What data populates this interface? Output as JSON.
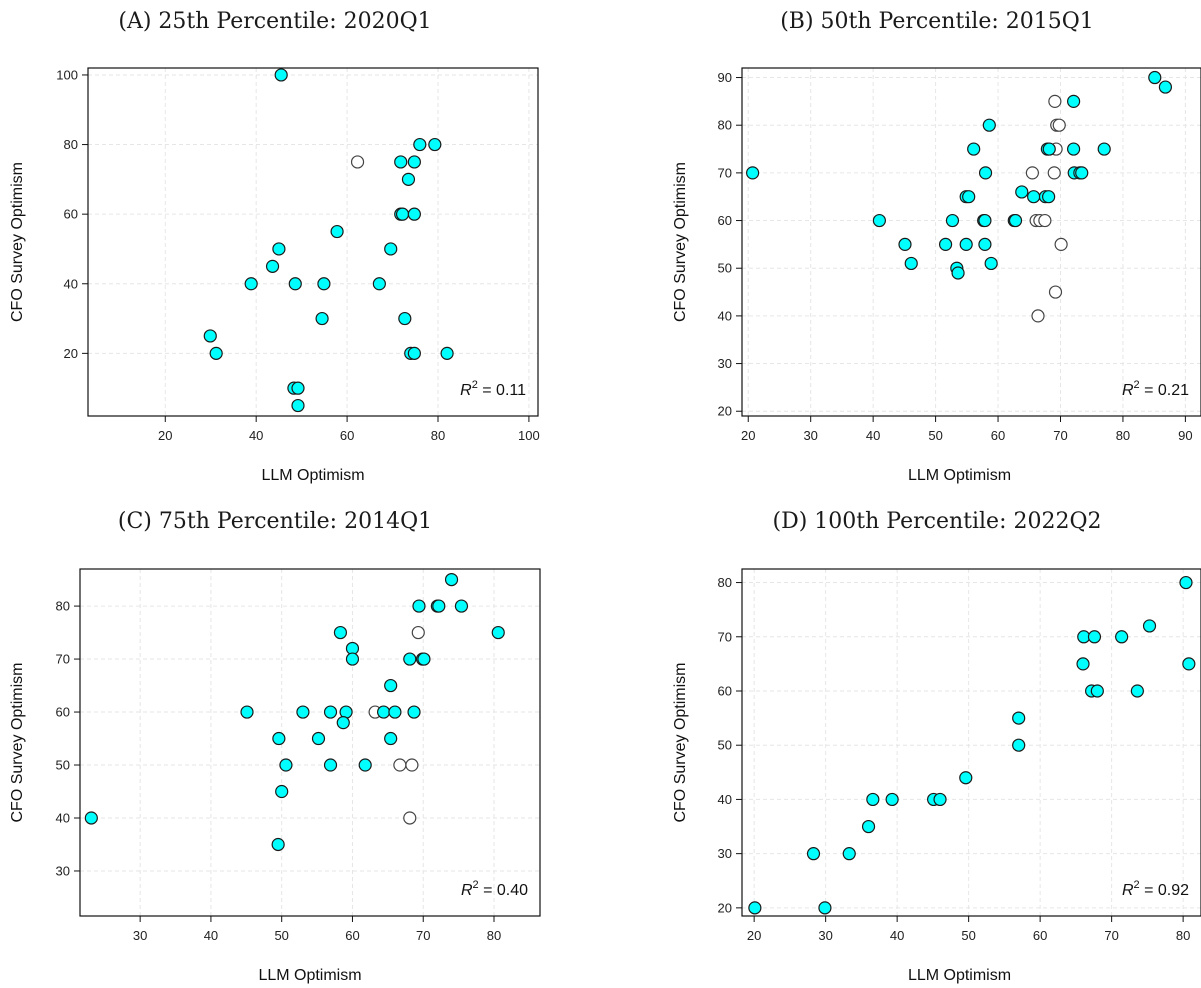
{
  "chart_data": [
    {
      "type": "scatter",
      "title": "(A) 25th Percentile: 2020Q1",
      "xlabel": "LLM Optimism",
      "ylabel": "CFO Survey Optimism",
      "r2_label": "= 0.11",
      "xlim": [
        3,
        102
      ],
      "ylim": [
        2,
        102
      ],
      "xticks": [
        20,
        40,
        60,
        80,
        100
      ],
      "yticks": [
        20,
        40,
        60,
        80,
        100
      ],
      "grid": true,
      "highlight_color": "#00FFFF",
      "outline_color": "#ffffff",
      "points": [
        {
          "x": 45.5,
          "y": 100,
          "h": true
        },
        {
          "x": 62.3,
          "y": 75,
          "h": false
        },
        {
          "x": 79.3,
          "y": 80,
          "h": true
        },
        {
          "x": 76.0,
          "y": 80,
          "h": true
        },
        {
          "x": 71.8,
          "y": 75,
          "h": true
        },
        {
          "x": 74.8,
          "y": 75,
          "h": true
        },
        {
          "x": 73.5,
          "y": 70,
          "h": true
        },
        {
          "x": 71.8,
          "y": 60,
          "h": true
        },
        {
          "x": 72.2,
          "y": 60,
          "h": true
        },
        {
          "x": 74.8,
          "y": 60,
          "h": true
        },
        {
          "x": 57.8,
          "y": 55,
          "h": true
        },
        {
          "x": 69.6,
          "y": 50,
          "h": true
        },
        {
          "x": 45.0,
          "y": 50,
          "h": true
        },
        {
          "x": 43.6,
          "y": 45,
          "h": true
        },
        {
          "x": 38.9,
          "y": 40,
          "h": true
        },
        {
          "x": 48.6,
          "y": 40,
          "h": true
        },
        {
          "x": 54.9,
          "y": 40,
          "h": true
        },
        {
          "x": 67.1,
          "y": 40,
          "h": true
        },
        {
          "x": 54.5,
          "y": 30,
          "h": true
        },
        {
          "x": 72.7,
          "y": 30,
          "h": true
        },
        {
          "x": 29.9,
          "y": 25,
          "h": true
        },
        {
          "x": 31.2,
          "y": 20,
          "h": true
        },
        {
          "x": 74.0,
          "y": 20,
          "h": true
        },
        {
          "x": 74.8,
          "y": 20,
          "h": true
        },
        {
          "x": 82.0,
          "y": 20,
          "h": true
        },
        {
          "x": 48.3,
          "y": 10,
          "h": true
        },
        {
          "x": 49.2,
          "y": 10,
          "h": true
        },
        {
          "x": 49.2,
          "y": 5,
          "h": true
        }
      ]
    },
    {
      "type": "scatter",
      "title": "(B) 50th Percentile: 2015Q1",
      "xlabel": "LLM Optimism",
      "ylabel": "CFO Survey Optimism",
      "r2_label": "= 0.21",
      "xlim": [
        19,
        92.5
      ],
      "ylim": [
        19,
        92
      ],
      "xticks": [
        20,
        30,
        40,
        50,
        60,
        70,
        80,
        90
      ],
      "yticks": [
        20,
        30,
        40,
        50,
        60,
        70,
        80,
        90
      ],
      "grid": true,
      "highlight_color": "#00FFFF",
      "outline_color": "#ffffff",
      "points": [
        {
          "x": 85.1,
          "y": 90,
          "h": true
        },
        {
          "x": 86.8,
          "y": 88,
          "h": true
        },
        {
          "x": 69.1,
          "y": 85,
          "h": false
        },
        {
          "x": 72.1,
          "y": 85,
          "h": true
        },
        {
          "x": 58.6,
          "y": 80,
          "h": true
        },
        {
          "x": 69.4,
          "y": 80,
          "h": false
        },
        {
          "x": 69.8,
          "y": 80,
          "h": false
        },
        {
          "x": 56.1,
          "y": 75,
          "h": true
        },
        {
          "x": 67.9,
          "y": 75,
          "h": true
        },
        {
          "x": 68.2,
          "y": 75,
          "h": true
        },
        {
          "x": 69.3,
          "y": 75,
          "h": false
        },
        {
          "x": 72.1,
          "y": 75,
          "h": true
        },
        {
          "x": 77.0,
          "y": 75,
          "h": true
        },
        {
          "x": 20.7,
          "y": 70,
          "h": true
        },
        {
          "x": 58.0,
          "y": 70,
          "h": true
        },
        {
          "x": 65.5,
          "y": 70,
          "h": false
        },
        {
          "x": 69.0,
          "y": 70,
          "h": false
        },
        {
          "x": 72.2,
          "y": 70,
          "h": true
        },
        {
          "x": 73.1,
          "y": 70,
          "h": true
        },
        {
          "x": 73.4,
          "y": 70,
          "h": true
        },
        {
          "x": 63.8,
          "y": 66,
          "h": true
        },
        {
          "x": 54.9,
          "y": 65,
          "h": true
        },
        {
          "x": 55.3,
          "y": 65,
          "h": true
        },
        {
          "x": 65.7,
          "y": 65,
          "h": true
        },
        {
          "x": 67.6,
          "y": 65,
          "h": true
        },
        {
          "x": 68.1,
          "y": 65,
          "h": true
        },
        {
          "x": 41.0,
          "y": 60,
          "h": true
        },
        {
          "x": 52.7,
          "y": 60,
          "h": true
        },
        {
          "x": 57.7,
          "y": 60,
          "h": true
        },
        {
          "x": 57.9,
          "y": 60,
          "h": true
        },
        {
          "x": 62.6,
          "y": 60,
          "h": true
        },
        {
          "x": 62.8,
          "y": 60,
          "h": true
        },
        {
          "x": 66.1,
          "y": 60,
          "h": false
        },
        {
          "x": 66.7,
          "y": 60,
          "h": false
        },
        {
          "x": 67.5,
          "y": 60,
          "h": false
        },
        {
          "x": 45.1,
          "y": 55,
          "h": true
        },
        {
          "x": 51.6,
          "y": 55,
          "h": true
        },
        {
          "x": 54.9,
          "y": 55,
          "h": true
        },
        {
          "x": 57.9,
          "y": 55,
          "h": true
        },
        {
          "x": 70.1,
          "y": 55,
          "h": false
        },
        {
          "x": 46.1,
          "y": 51,
          "h": true
        },
        {
          "x": 58.9,
          "y": 51,
          "h": true
        },
        {
          "x": 53.4,
          "y": 50,
          "h": true
        },
        {
          "x": 53.6,
          "y": 49,
          "h": true
        },
        {
          "x": 69.2,
          "y": 45,
          "h": false
        },
        {
          "x": 66.4,
          "y": 40,
          "h": false
        }
      ]
    },
    {
      "type": "scatter",
      "title": "(C) 75th Percentile: 2014Q1",
      "xlabel": "LLM Optimism",
      "ylabel": "CFO Survey Optimism",
      "r2_label": "= 0.40",
      "xlim": [
        21.5,
        86.5
      ],
      "ylim": [
        21.5,
        87
      ],
      "xticks": [
        30,
        40,
        50,
        60,
        70,
        80
      ],
      "yticks": [
        30,
        40,
        50,
        60,
        70,
        80
      ],
      "grid": true,
      "highlight_color": "#00FFFF",
      "outline_color": "#ffffff",
      "points": [
        {
          "x": 74.0,
          "y": 85,
          "h": true
        },
        {
          "x": 69.4,
          "y": 80,
          "h": true
        },
        {
          "x": 72.0,
          "y": 80,
          "h": true
        },
        {
          "x": 72.2,
          "y": 80,
          "h": true
        },
        {
          "x": 75.4,
          "y": 80,
          "h": true
        },
        {
          "x": 58.3,
          "y": 75,
          "h": true
        },
        {
          "x": 69.3,
          "y": 75,
          "h": false
        },
        {
          "x": 80.6,
          "y": 75,
          "h": true
        },
        {
          "x": 60.0,
          "y": 72,
          "h": true
        },
        {
          "x": 60.0,
          "y": 70,
          "h": true
        },
        {
          "x": 68.1,
          "y": 70,
          "h": true
        },
        {
          "x": 69.9,
          "y": 70,
          "h": true
        },
        {
          "x": 70.1,
          "y": 70,
          "h": true
        },
        {
          "x": 65.4,
          "y": 65,
          "h": true
        },
        {
          "x": 45.1,
          "y": 60,
          "h": true
        },
        {
          "x": 53.0,
          "y": 60,
          "h": true
        },
        {
          "x": 56.9,
          "y": 60,
          "h": true
        },
        {
          "x": 59.1,
          "y": 60,
          "h": true
        },
        {
          "x": 63.2,
          "y": 60,
          "h": false
        },
        {
          "x": 64.4,
          "y": 60,
          "h": true
        },
        {
          "x": 66.0,
          "y": 60,
          "h": true
        },
        {
          "x": 68.7,
          "y": 60,
          "h": true
        },
        {
          "x": 58.7,
          "y": 58,
          "h": true
        },
        {
          "x": 49.6,
          "y": 55,
          "h": true
        },
        {
          "x": 55.2,
          "y": 55,
          "h": true
        },
        {
          "x": 65.4,
          "y": 55,
          "h": true
        },
        {
          "x": 50.6,
          "y": 50,
          "h": true
        },
        {
          "x": 56.9,
          "y": 50,
          "h": true
        },
        {
          "x": 61.8,
          "y": 50,
          "h": true
        },
        {
          "x": 66.7,
          "y": 50,
          "h": false
        },
        {
          "x": 68.4,
          "y": 50,
          "h": false
        },
        {
          "x": 50.0,
          "y": 45,
          "h": true
        },
        {
          "x": 23.1,
          "y": 40,
          "h": true
        },
        {
          "x": 68.1,
          "y": 40,
          "h": false
        },
        {
          "x": 49.5,
          "y": 35,
          "h": true
        }
      ]
    },
    {
      "type": "scatter",
      "title": "(D) 100th Percentile: 2022Q2",
      "xlabel": "LLM Optimism",
      "ylabel": "CFO Survey Optimism",
      "r2_label": "= 0.92",
      "xlim": [
        18.3,
        82.5
      ],
      "ylim": [
        18.5,
        82.5
      ],
      "xticks": [
        20,
        30,
        40,
        50,
        60,
        70,
        80
      ],
      "yticks": [
        20,
        30,
        40,
        50,
        60,
        70,
        80
      ],
      "grid": true,
      "highlight_color": "#00FFFF",
      "outline_color": "#ffffff",
      "points": [
        {
          "x": 80.4,
          "y": 80,
          "h": true
        },
        {
          "x": 75.3,
          "y": 72,
          "h": true
        },
        {
          "x": 66.1,
          "y": 70,
          "h": true
        },
        {
          "x": 67.6,
          "y": 70,
          "h": true
        },
        {
          "x": 71.4,
          "y": 70,
          "h": true
        },
        {
          "x": 66.0,
          "y": 65,
          "h": true
        },
        {
          "x": 80.8,
          "y": 65,
          "h": true
        },
        {
          "x": 67.2,
          "y": 60,
          "h": true
        },
        {
          "x": 68.0,
          "y": 60,
          "h": true
        },
        {
          "x": 73.6,
          "y": 60,
          "h": true
        },
        {
          "x": 57.0,
          "y": 55,
          "h": true
        },
        {
          "x": 57.0,
          "y": 50,
          "h": true
        },
        {
          "x": 49.6,
          "y": 44,
          "h": true
        },
        {
          "x": 36.6,
          "y": 40,
          "h": true
        },
        {
          "x": 39.3,
          "y": 40,
          "h": true
        },
        {
          "x": 45.1,
          "y": 40,
          "h": true
        },
        {
          "x": 46.0,
          "y": 40,
          "h": true
        },
        {
          "x": 36.0,
          "y": 35,
          "h": true
        },
        {
          "x": 28.3,
          "y": 30,
          "h": true
        },
        {
          "x": 33.3,
          "y": 30,
          "h": true
        },
        {
          "x": 20.1,
          "y": 20,
          "h": true
        },
        {
          "x": 29.9,
          "y": 20,
          "h": true
        }
      ]
    }
  ]
}
